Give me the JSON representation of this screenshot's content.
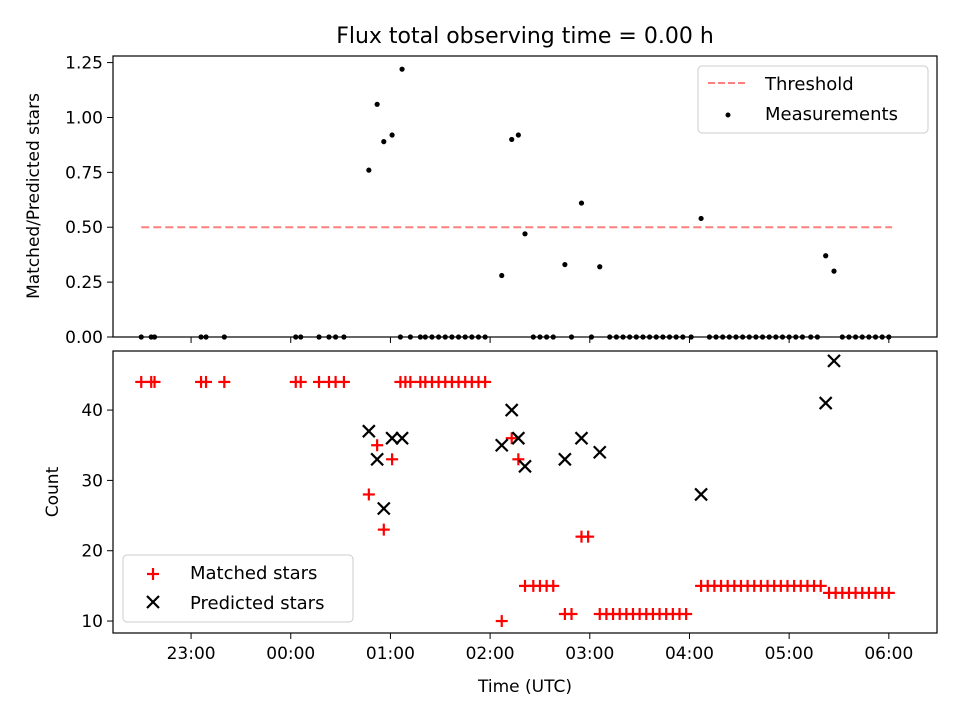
{
  "chart_data": [
    {
      "type": "scatter",
      "panel": "top",
      "title": "Flux total observing time = 0.00 h",
      "xlabel": "",
      "ylabel": "Matched/Predicted stars",
      "xlim": [
        "22:13",
        "06:29"
      ],
      "ylim": [
        0,
        1.28
      ],
      "yticks": [
        "0.00",
        "0.25",
        "0.50",
        "0.75",
        "1.00",
        "1.25"
      ],
      "xticks": [
        "23:00",
        "00:00",
        "01:00",
        "02:00",
        "03:00",
        "04:00",
        "05:00",
        "06:00"
      ],
      "show_xtick_labels": false,
      "legend_position": "top-right",
      "colors": {
        "threshold": "#ff7f7f",
        "measurements": "#000000"
      },
      "series": [
        {
          "name": "Threshold",
          "kind": "dashed-line",
          "x": [
            "22:30",
            "06:02"
          ],
          "y": [
            0.5,
            0.5
          ]
        },
        {
          "name": "Measurements",
          "kind": "dots",
          "points": [
            [
              "22:30",
              0
            ],
            [
              "22:36",
              0
            ],
            [
              "22:38",
              0
            ],
            [
              "23:06",
              0
            ],
            [
              "23:09",
              0
            ],
            [
              "23:20",
              0
            ],
            [
              "00:03",
              0
            ],
            [
              "00:06",
              0
            ],
            [
              "00:17",
              0
            ],
            [
              "00:23",
              0
            ],
            [
              "00:27",
              0
            ],
            [
              "00:32",
              0
            ],
            [
              "00:47",
              0.76
            ],
            [
              "00:52",
              1.06
            ],
            [
              "00:56",
              0.89
            ],
            [
              "01:01",
              0.92
            ],
            [
              "01:07",
              1.22
            ],
            [
              "01:06",
              0
            ],
            [
              "01:12",
              0
            ],
            [
              "01:18",
              0
            ],
            [
              "01:21",
              0
            ],
            [
              "01:25",
              0
            ],
            [
              "01:29",
              0
            ],
            [
              "01:33",
              0
            ],
            [
              "01:37",
              0
            ],
            [
              "01:41",
              0
            ],
            [
              "01:45",
              0
            ],
            [
              "01:49",
              0
            ],
            [
              "01:53",
              0
            ],
            [
              "01:57",
              0
            ],
            [
              "02:07",
              0.28
            ],
            [
              "02:13",
              0.9
            ],
            [
              "02:17",
              0.92
            ],
            [
              "02:21",
              0.47
            ],
            [
              "02:26",
              0
            ],
            [
              "02:30",
              0
            ],
            [
              "02:34",
              0
            ],
            [
              "02:38",
              0
            ],
            [
              "02:45",
              0.33
            ],
            [
              "02:49",
              0
            ],
            [
              "02:55",
              0.61
            ],
            [
              "03:01",
              0
            ],
            [
              "03:06",
              0.32
            ],
            [
              "03:12",
              0
            ],
            [
              "03:16",
              0
            ],
            [
              "03:20",
              0
            ],
            [
              "03:24",
              0
            ],
            [
              "03:28",
              0
            ],
            [
              "03:32",
              0
            ],
            [
              "03:36",
              0
            ],
            [
              "03:40",
              0
            ],
            [
              "03:44",
              0
            ],
            [
              "03:48",
              0
            ],
            [
              "03:52",
              0
            ],
            [
              "03:56",
              0
            ],
            [
              "04:01",
              0
            ],
            [
              "04:07",
              0.54
            ],
            [
              "04:12",
              0
            ],
            [
              "04:16",
              0
            ],
            [
              "04:20",
              0
            ],
            [
              "04:24",
              0
            ],
            [
              "04:28",
              0
            ],
            [
              "04:32",
              0
            ],
            [
              "04:36",
              0
            ],
            [
              "04:40",
              0
            ],
            [
              "04:44",
              0
            ],
            [
              "04:48",
              0
            ],
            [
              "04:52",
              0
            ],
            [
              "04:56",
              0
            ],
            [
              "05:00",
              0
            ],
            [
              "05:04",
              0
            ],
            [
              "05:08",
              0
            ],
            [
              "05:13",
              0
            ],
            [
              "05:17",
              0
            ],
            [
              "05:22",
              0.37
            ],
            [
              "05:27",
              0.3
            ],
            [
              "05:32",
              0
            ],
            [
              "05:36",
              0
            ],
            [
              "05:40",
              0
            ],
            [
              "05:44",
              0
            ],
            [
              "05:48",
              0
            ],
            [
              "05:52",
              0
            ],
            [
              "05:56",
              0
            ],
            [
              "06:00",
              0
            ]
          ]
        }
      ]
    },
    {
      "type": "scatter",
      "panel": "bottom",
      "xlabel": "Time (UTC)",
      "ylabel": "Count",
      "xlim": [
        "22:13",
        "06:29"
      ],
      "ylim": [
        8.3,
        48.4
      ],
      "yticks": [
        "10",
        "20",
        "30",
        "40"
      ],
      "xticks": [
        "23:00",
        "00:00",
        "01:00",
        "02:00",
        "03:00",
        "04:00",
        "05:00",
        "06:00"
      ],
      "legend_position": "bottom-left",
      "colors": {
        "matched": "#ff0000",
        "predicted": "#000000"
      },
      "series": [
        {
          "name": "Matched stars",
          "marker": "plus",
          "points": [
            [
              "22:30",
              44
            ],
            [
              "22:36",
              44
            ],
            [
              "22:38",
              44
            ],
            [
              "23:06",
              44
            ],
            [
              "23:09",
              44
            ],
            [
              "23:20",
              44
            ],
            [
              "00:03",
              44
            ],
            [
              "00:06",
              44
            ],
            [
              "00:17",
              44
            ],
            [
              "00:23",
              44
            ],
            [
              "00:27",
              44
            ],
            [
              "00:32",
              44
            ],
            [
              "00:47",
              28
            ],
            [
              "00:52",
              35
            ],
            [
              "00:56",
              23
            ],
            [
              "01:01",
              33
            ],
            [
              "01:06",
              44
            ],
            [
              "01:09",
              44
            ],
            [
              "01:12",
              44
            ],
            [
              "01:18",
              44
            ],
            [
              "01:21",
              44
            ],
            [
              "01:25",
              44
            ],
            [
              "01:29",
              44
            ],
            [
              "01:33",
              44
            ],
            [
              "01:37",
              44
            ],
            [
              "01:41",
              44
            ],
            [
              "01:45",
              44
            ],
            [
              "01:49",
              44
            ],
            [
              "01:53",
              44
            ],
            [
              "01:57",
              44
            ],
            [
              "02:07",
              10
            ],
            [
              "02:13",
              36
            ],
            [
              "02:17",
              33
            ],
            [
              "02:21",
              15
            ],
            [
              "02:26",
              15
            ],
            [
              "02:30",
              15
            ],
            [
              "02:34",
              15
            ],
            [
              "02:38",
              15
            ],
            [
              "02:45",
              11
            ],
            [
              "02:49",
              11
            ],
            [
              "02:55",
              22
            ],
            [
              "02:59",
              22
            ],
            [
              "03:06",
              11
            ],
            [
              "03:10",
              11
            ],
            [
              "03:14",
              11
            ],
            [
              "03:18",
              11
            ],
            [
              "03:22",
              11
            ],
            [
              "03:26",
              11
            ],
            [
              "03:30",
              11
            ],
            [
              "03:34",
              11
            ],
            [
              "03:38",
              11
            ],
            [
              "03:42",
              11
            ],
            [
              "03:46",
              11
            ],
            [
              "03:50",
              11
            ],
            [
              "03:54",
              11
            ],
            [
              "03:58",
              11
            ],
            [
              "04:07",
              15
            ],
            [
              "04:11",
              15
            ],
            [
              "04:15",
              15
            ],
            [
              "04:19",
              15
            ],
            [
              "04:23",
              15
            ],
            [
              "04:27",
              15
            ],
            [
              "04:31",
              15
            ],
            [
              "04:35",
              15
            ],
            [
              "04:39",
              15
            ],
            [
              "04:43",
              15
            ],
            [
              "04:47",
              15
            ],
            [
              "04:51",
              15
            ],
            [
              "04:55",
              15
            ],
            [
              "04:59",
              15
            ],
            [
              "05:03",
              15
            ],
            [
              "05:07",
              15
            ],
            [
              "05:11",
              15
            ],
            [
              "05:15",
              15
            ],
            [
              "05:19",
              15
            ],
            [
              "05:24",
              14
            ],
            [
              "05:28",
              14
            ],
            [
              "05:32",
              14
            ],
            [
              "05:36",
              14
            ],
            [
              "05:40",
              14
            ],
            [
              "05:44",
              14
            ],
            [
              "05:48",
              14
            ],
            [
              "05:52",
              14
            ],
            [
              "05:56",
              14
            ],
            [
              "06:00",
              14
            ]
          ]
        },
        {
          "name": "Predicted stars",
          "marker": "x",
          "points": [
            [
              "00:47",
              37
            ],
            [
              "00:52",
              33
            ],
            [
              "00:56",
              26
            ],
            [
              "01:01",
              36
            ],
            [
              "01:07",
              36
            ],
            [
              "02:07",
              35
            ],
            [
              "02:13",
              40
            ],
            [
              "02:17",
              36
            ],
            [
              "02:21",
              32
            ],
            [
              "02:45",
              33
            ],
            [
              "02:55",
              36
            ],
            [
              "03:06",
              34
            ],
            [
              "04:07",
              28
            ],
            [
              "05:22",
              41
            ],
            [
              "05:27",
              47
            ]
          ]
        }
      ]
    }
  ]
}
